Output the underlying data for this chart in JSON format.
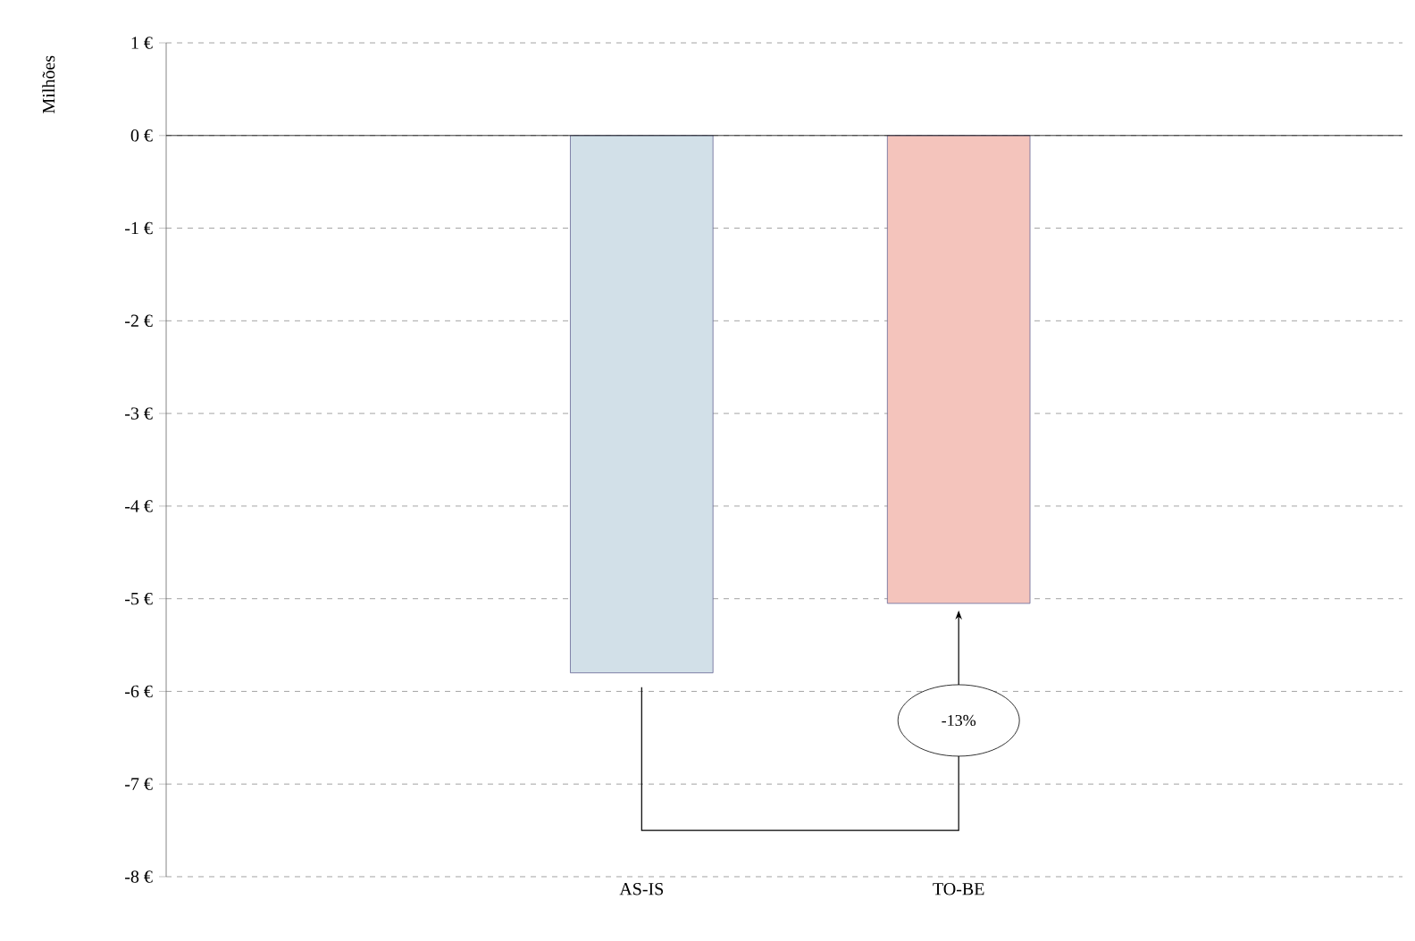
{
  "chart_data": {
    "type": "bar",
    "ylabel": "Milhões",
    "categories": [
      "AS-IS",
      "TO-BE"
    ],
    "values": [
      -5.8,
      -5.05
    ],
    "colors": [
      "#d2e0e8",
      "#f4c4bc"
    ],
    "ylim": [
      -8,
      1
    ],
    "yticks": [
      {
        "value": 1,
        "label": "1 €"
      },
      {
        "value": 0,
        "label": "0 €"
      },
      {
        "value": -1,
        "label": "-1 €"
      },
      {
        "value": -2,
        "label": "-2 €"
      },
      {
        "value": -3,
        "label": "-3 €"
      },
      {
        "value": -4,
        "label": "-4 €"
      },
      {
        "value": -5,
        "label": "-5 €"
      },
      {
        "value": -6,
        "label": "-6 €"
      },
      {
        "value": -7,
        "label": "-7 €"
      },
      {
        "value": -8,
        "label": "-8 €"
      }
    ],
    "grid": "y",
    "annotations": [
      "-13%"
    ]
  }
}
